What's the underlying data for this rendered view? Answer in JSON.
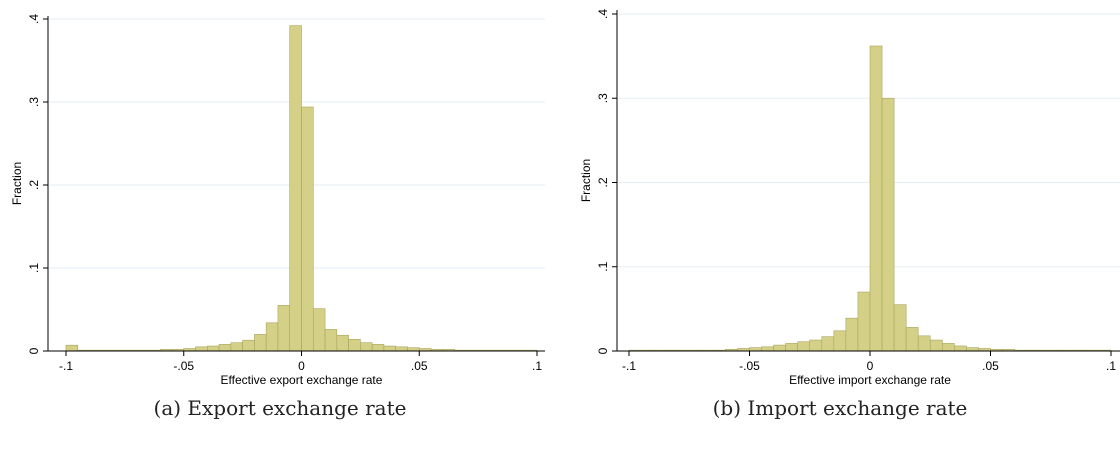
{
  "colors": {
    "bar_fill": "#d4d088",
    "bar_stroke": "#a8a55e",
    "grid": "#e6eef2",
    "axis": "#000000"
  },
  "chart_data": [
    {
      "type": "bar",
      "caption": "(a)  Export exchange rate",
      "xlabel": "Effective export exchange rate",
      "ylabel": "Fraction",
      "xlim": [
        -0.1,
        0.1
      ],
      "ylim": [
        0,
        0.4
      ],
      "xticks": [
        -0.1,
        -0.05,
        0,
        0.05,
        0.1
      ],
      "xtick_labels": [
        "-.1",
        "-.05",
        "0",
        ".05",
        ".1"
      ],
      "yticks": [
        0,
        0.1,
        0.2,
        0.3,
        0.4
      ],
      "ytick_labels": [
        "0",
        ".1",
        ".2",
        ".3",
        ".4"
      ],
      "grid": true,
      "bin_width": 0.005,
      "bin_starts": [
        -0.1,
        -0.095,
        -0.09,
        -0.085,
        -0.08,
        -0.075,
        -0.07,
        -0.065,
        -0.06,
        -0.055,
        -0.05,
        -0.045,
        -0.04,
        -0.035,
        -0.03,
        -0.025,
        -0.02,
        -0.015,
        -0.01,
        -0.005,
        0,
        0.005,
        0.01,
        0.015,
        0.02,
        0.025,
        0.03,
        0.035,
        0.04,
        0.045,
        0.05,
        0.055,
        0.06,
        0.065,
        0.07,
        0.075,
        0.08,
        0.085,
        0.09,
        0.095
      ],
      "values": [
        0.007,
        0.001,
        0.001,
        0.001,
        0.001,
        0.001,
        0.001,
        0.001,
        0.002,
        0.002,
        0.003,
        0.005,
        0.006,
        0.008,
        0.01,
        0.013,
        0.02,
        0.034,
        0.055,
        0.392,
        0.294,
        0.051,
        0.026,
        0.019,
        0.014,
        0.01,
        0.008,
        0.006,
        0.005,
        0.004,
        0.003,
        0.002,
        0.002,
        0.001,
        0.001,
        0.001,
        0.001,
        0.001,
        0.001,
        0.001
      ]
    },
    {
      "type": "bar",
      "caption": "(b)  Import exchange rate",
      "xlabel": "Effective import exchange rate",
      "ylabel": "Fraction",
      "xlim": [
        -0.1,
        0.1
      ],
      "ylim": [
        0,
        0.4
      ],
      "xticks": [
        -0.1,
        -0.05,
        0,
        0.05,
        0.1
      ],
      "xtick_labels": [
        "-.1",
        "-.05",
        "0",
        ".05",
        ".1"
      ],
      "yticks": [
        0,
        0.1,
        0.2,
        0.3,
        0.4
      ],
      "ytick_labels": [
        "0",
        ".1",
        ".2",
        ".3",
        ".4"
      ],
      "grid": true,
      "bin_width": 0.005,
      "bin_starts": [
        -0.1,
        -0.095,
        -0.09,
        -0.085,
        -0.08,
        -0.075,
        -0.07,
        -0.065,
        -0.06,
        -0.055,
        -0.05,
        -0.045,
        -0.04,
        -0.035,
        -0.03,
        -0.025,
        -0.02,
        -0.015,
        -0.01,
        -0.005,
        0,
        0.005,
        0.01,
        0.015,
        0.02,
        0.025,
        0.03,
        0.035,
        0.04,
        0.045,
        0.05,
        0.055,
        0.06,
        0.065,
        0.07,
        0.075,
        0.08,
        0.085,
        0.09,
        0.095
      ],
      "values": [
        0.001,
        0.001,
        0.001,
        0.001,
        0.001,
        0.001,
        0.001,
        0.001,
        0.002,
        0.003,
        0.004,
        0.005,
        0.007,
        0.009,
        0.011,
        0.013,
        0.017,
        0.024,
        0.039,
        0.07,
        0.362,
        0.3,
        0.055,
        0.028,
        0.018,
        0.013,
        0.009,
        0.006,
        0.004,
        0.003,
        0.002,
        0.002,
        0.001,
        0.001,
        0.001,
        0.001,
        0.001,
        0.001,
        0.001,
        0.001
      ]
    }
  ]
}
